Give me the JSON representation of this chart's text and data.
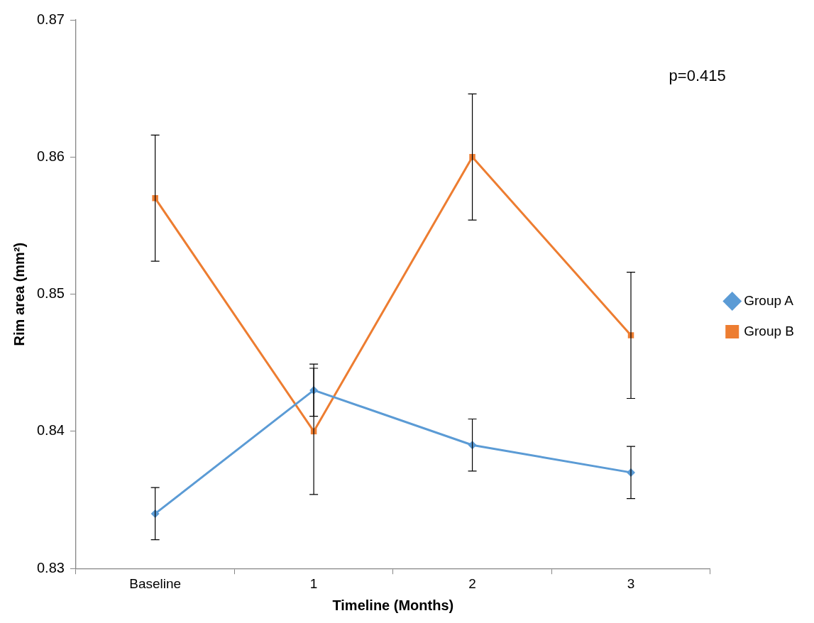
{
  "chart_data": {
    "type": "line",
    "xlabel": "Timeline (Months)",
    "ylabel": "Rim area (mm²)",
    "categories": [
      "Baseline",
      "1",
      "2",
      "3"
    ],
    "series": [
      {
        "name": "Group A",
        "color": "#5b9bd5",
        "marker": "diamond",
        "values": [
          0.834,
          0.843,
          0.839,
          0.837
        ],
        "errors": [
          0.0019,
          0.0019,
          0.0019,
          0.0019
        ]
      },
      {
        "name": "Group B",
        "color": "#ed7d31",
        "marker": "square",
        "values": [
          0.857,
          0.84,
          0.86,
          0.847
        ],
        "errors": [
          0.0046,
          0.0046,
          0.0046,
          0.0046
        ]
      }
    ],
    "ylim": [
      0.83,
      0.87
    ],
    "yticks": [
      0.83,
      0.84,
      0.85,
      0.86,
      0.87
    ],
    "grid": false,
    "legend": "right",
    "annotations": [
      "p=0.415"
    ]
  }
}
